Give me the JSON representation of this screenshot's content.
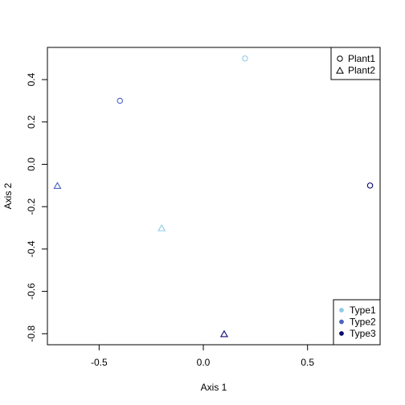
{
  "chart_data": {
    "type": "scatter",
    "title": "",
    "xlabel": "Axis 1",
    "ylabel": "Axis 2",
    "xlim": [
      -0.748,
      0.848
    ],
    "ylim": [
      -0.852,
      0.552
    ],
    "xticks": [
      -0.5,
      0.0,
      0.5
    ],
    "xtick_labels": [
      "-0.5",
      "0.0",
      "0.5"
    ],
    "yticks": [
      -0.8,
      -0.6,
      -0.4,
      -0.2,
      0.0,
      0.2,
      0.4
    ],
    "ytick_labels": [
      "-0.8",
      "-0.6",
      "-0.4",
      "-0.2",
      "0.0",
      "0.2",
      "0.4"
    ],
    "grid": false,
    "colors": {
      "Type1": "#8ecae6",
      "Type2": "#4a63c2",
      "Type3": "#0a0a6e"
    },
    "shapes": {
      "Plant1": "circle",
      "Plant2": "triangle"
    },
    "points": [
      {
        "x": 0.2,
        "y": 0.5,
        "plant": "Plant1",
        "type": "Type1"
      },
      {
        "x": -0.4,
        "y": 0.3,
        "plant": "Plant1",
        "type": "Type2"
      },
      {
        "x": 0.8,
        "y": -0.1,
        "plant": "Plant1",
        "type": "Type3"
      },
      {
        "x": -0.7,
        "y": -0.1,
        "plant": "Plant2",
        "type": "Type2"
      },
      {
        "x": -0.2,
        "y": -0.3,
        "plant": "Plant2",
        "type": "Type1"
      },
      {
        "x": 0.1,
        "y": -0.8,
        "plant": "Plant2",
        "type": "Type3"
      }
    ],
    "legends": [
      {
        "placement": "top-right",
        "entries": [
          {
            "label": "Plant1",
            "shape": "circle"
          },
          {
            "label": "Plant2",
            "shape": "triangle"
          }
        ]
      },
      {
        "placement": "bottom-right",
        "entries": [
          {
            "label": "Type1",
            "color": "#8ecae6"
          },
          {
            "label": "Type2",
            "color": "#4a63c2"
          },
          {
            "label": "Type3",
            "color": "#0a0a6e"
          }
        ]
      }
    ]
  }
}
